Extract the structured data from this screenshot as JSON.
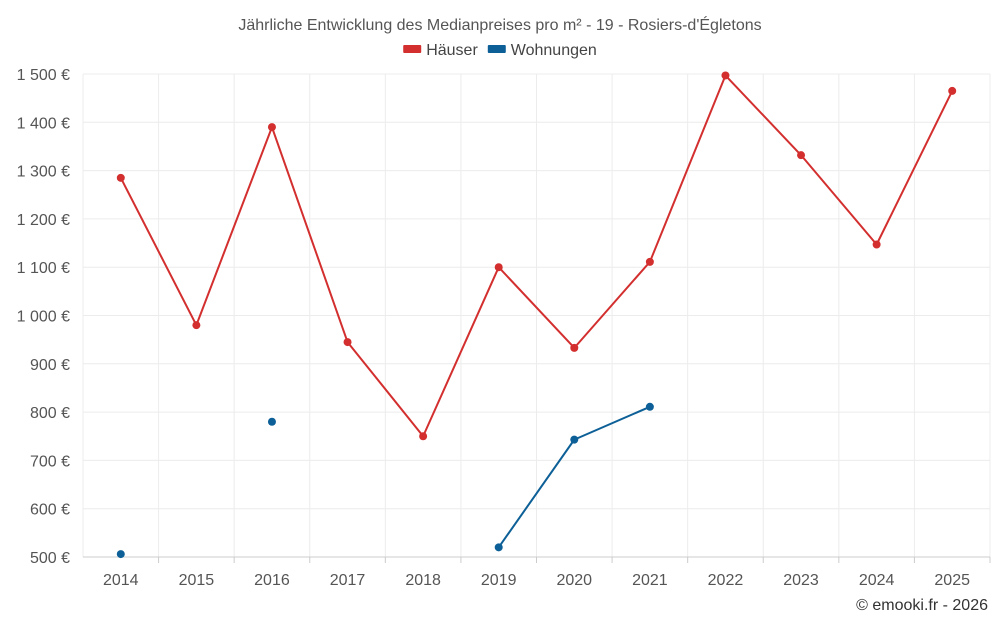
{
  "chart_data": {
    "type": "line",
    "title": "Jährliche Entwicklung des Medianpreises pro m² - 19 - Rosiers-d'Égletons",
    "categories": [
      "2014",
      "2015",
      "2016",
      "2017",
      "2018",
      "2019",
      "2020",
      "2021",
      "2022",
      "2023",
      "2024",
      "2025"
    ],
    "series": [
      {
        "name": "Häuser",
        "color": "#d32f2f",
        "values": [
          1285,
          980,
          1390,
          945,
          750,
          1100,
          933,
          1111,
          1497,
          1332,
          1147,
          1465
        ]
      },
      {
        "name": "Wohnungen",
        "color": "#0d6097",
        "values": [
          506,
          null,
          780,
          null,
          null,
          520,
          743,
          811,
          null,
          null,
          null,
          null
        ]
      }
    ],
    "ylim": [
      500,
      1500
    ],
    "yticks": [
      500,
      600,
      700,
      800,
      900,
      1000,
      1100,
      1200,
      1300,
      1400,
      1500
    ],
    "ytick_labels": [
      "500 €",
      "600 €",
      "700 €",
      "800 €",
      "900 €",
      "1 000 €",
      "1 100 €",
      "1 200 €",
      "1 300 €",
      "1 400 €",
      "1 500 €"
    ],
    "xlabel": "",
    "ylabel": "",
    "grid": true,
    "legend_position": "top-center"
  },
  "credit": "© emooki.fr - 2026"
}
